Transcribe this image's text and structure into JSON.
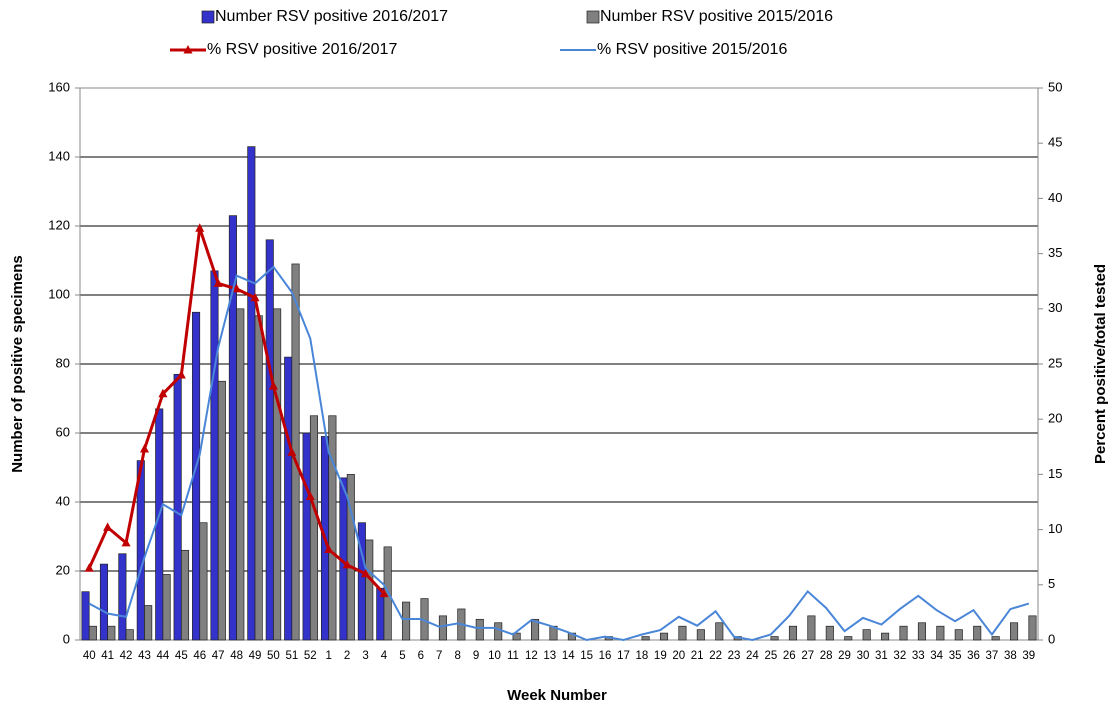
{
  "chart_data": {
    "type": "bar-line",
    "y_label": "Number of positive specimens",
    "y2_label": "Percent positive/total tested",
    "x_label": "Week Number",
    "categories": [
      40,
      41,
      42,
      43,
      44,
      45,
      46,
      47,
      48,
      49,
      50,
      51,
      52,
      1,
      2,
      3,
      4,
      5,
      6,
      7,
      8,
      9,
      10,
      11,
      12,
      13,
      14,
      15,
      16,
      17,
      18,
      19,
      20,
      21,
      22,
      23,
      24,
      25,
      26,
      27,
      28,
      29,
      30,
      31,
      32,
      33,
      34,
      35,
      36,
      37,
      38,
      39
    ],
    "series": [
      {
        "name": "Number RSV positive 2016/2017",
        "type": "bar",
        "color": "#3333cc",
        "values": [
          14,
          22,
          25,
          52,
          67,
          77,
          95,
          107,
          123,
          143,
          116,
          82,
          60,
          59,
          47,
          34,
          15,
          null,
          null,
          null,
          null,
          null,
          null,
          null,
          null,
          null,
          null,
          null,
          null,
          null,
          null,
          null,
          null,
          null,
          null,
          null,
          null,
          null,
          null,
          null,
          null,
          null,
          null,
          null,
          null,
          null,
          null,
          null,
          null,
          null,
          null,
          null
        ]
      },
      {
        "name": "Number RSV positive 2015/2016",
        "type": "bar",
        "color": "#808080",
        "values": [
          4,
          4,
          3,
          10,
          19,
          26,
          34,
          75,
          96,
          94,
          96,
          109,
          65,
          65,
          48,
          29,
          27,
          11,
          12,
          7,
          9,
          6,
          5,
          2,
          6,
          4,
          2,
          0,
          1,
          0,
          1,
          2,
          4,
          3,
          5,
          1,
          0,
          1,
          4,
          7,
          4,
          1,
          3,
          2,
          4,
          5,
          4,
          3,
          4,
          1,
          5,
          7
        ]
      },
      {
        "name": "% RSV positive 2016/2017",
        "type": "line",
        "axis": "y2",
        "color": "#c00000",
        "marker": "triangle",
        "values": [
          6.5,
          10.2,
          8.8,
          17.3,
          22.3,
          24,
          37.3,
          32.3,
          31.8,
          31,
          23,
          17,
          13,
          8.2,
          6.8,
          6,
          4.2,
          null,
          null,
          null,
          null,
          null,
          null,
          null,
          null,
          null,
          null,
          null,
          null,
          null,
          null,
          null,
          null,
          null,
          null,
          null,
          null,
          null,
          null,
          null,
          null,
          null,
          null,
          null,
          null,
          null,
          null,
          null,
          null,
          null,
          null,
          null
        ]
      },
      {
        "name": "% RSV positive 2015/2016",
        "type": "line",
        "axis": "y2",
        "color": "#4a86d8",
        "values": [
          3.3,
          2.4,
          2.1,
          7.5,
          12.3,
          11.3,
          16.8,
          26.5,
          33,
          32.3,
          33.8,
          31.5,
          27.3,
          17,
          13,
          6.5,
          5,
          1.9,
          1.9,
          1.2,
          1.5,
          1.1,
          1.1,
          0.5,
          1.8,
          1.3,
          0.7,
          0,
          0.3,
          0,
          0.5,
          0.9,
          2.1,
          1.3,
          2.6,
          0.3,
          0,
          0.5,
          2.2,
          4.4,
          2.9,
          0.8,
          2,
          1.4,
          2.8,
          4,
          2.7,
          1.7,
          2.7,
          0.5,
          2.8,
          3.3
        ]
      }
    ],
    "ylim": [
      0,
      160
    ],
    "yticks": [
      0,
      20,
      40,
      60,
      80,
      100,
      120,
      140,
      160
    ],
    "y2lim": [
      0,
      50
    ],
    "y2ticks": [
      0,
      5,
      10,
      15,
      20,
      25,
      30,
      35,
      40,
      45,
      50
    ],
    "grid": true
  }
}
